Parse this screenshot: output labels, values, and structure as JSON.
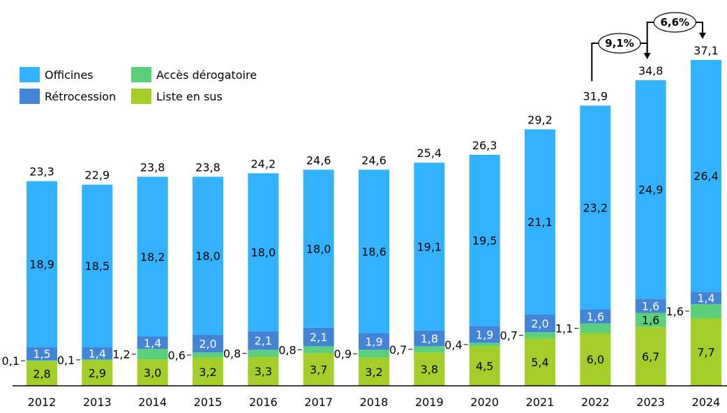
{
  "chart_data": {
    "type": "bar",
    "stacked": true,
    "title": "",
    "xlabel": "",
    "ylabel": "",
    "ylim": [
      0,
      37.1
    ],
    "grid": false,
    "legend_position": "top-left",
    "categories": [
      "2012",
      "2013",
      "2014",
      "2015",
      "2016",
      "2017",
      "2018",
      "2019",
      "2020",
      "2021",
      "2022",
      "2023",
      "2024"
    ],
    "series": [
      {
        "name": "Liste en sus",
        "color": "#A4CE2A",
        "values": [
          2.8,
          2.9,
          3.0,
          3.2,
          3.3,
          3.7,
          3.2,
          3.8,
          4.5,
          5.4,
          6.0,
          6.7,
          7.7
        ],
        "labels": [
          "2,8",
          "2,9",
          "3,0",
          "3,2",
          "3,3",
          "3,7",
          "3,2",
          "3,8",
          "4,5",
          "5,4",
          "6,0",
          "6,7",
          "7,7"
        ]
      },
      {
        "name": "Accès dérogatoire",
        "color": "#5BD07C",
        "values": [
          0.1,
          0.1,
          1.2,
          0.6,
          0.8,
          0.8,
          0.9,
          0.7,
          0.4,
          0.7,
          1.1,
          1.6,
          1.6
        ],
        "labels": [
          "0,1",
          "0,1",
          "1,2",
          "0,6",
          "0,8",
          "0,8",
          "0,9",
          "0,7",
          "0,4",
          "0,7",
          "1,1",
          "1,6",
          "1,6"
        ]
      },
      {
        "name": "Rétrocession",
        "color": "#4484D6",
        "values": [
          1.5,
          1.4,
          1.4,
          2.0,
          2.1,
          2.1,
          1.9,
          1.8,
          1.9,
          2.0,
          1.6,
          1.6,
          1.4
        ],
        "labels": [
          "1,5",
          "1,4",
          "1,4",
          "2,0",
          "2,1",
          "2,1",
          "1,9",
          "1,8",
          "1,9",
          "2,0",
          "1,6",
          "1,6",
          "1,4"
        ]
      },
      {
        "name": "Officines",
        "color": "#33B3FF",
        "values": [
          18.9,
          18.5,
          18.2,
          18.0,
          18.0,
          18.0,
          18.6,
          19.1,
          19.5,
          21.1,
          23.2,
          24.9,
          26.4
        ],
        "labels": [
          "18,9",
          "18,5",
          "18,2",
          "18,0",
          "18,0",
          "18,0",
          "18,6",
          "19,1",
          "19,5",
          "21,1",
          "23,2",
          "24,9",
          "26,4"
        ]
      }
    ],
    "totals": [
      23.3,
      22.9,
      23.8,
      23.8,
      24.2,
      24.6,
      24.6,
      25.4,
      26.3,
      29.2,
      31.9,
      34.8,
      37.1
    ],
    "total_labels": [
      "23,3",
      "22,9",
      "23,8",
      "23,8",
      "24,2",
      "24,6",
      "24,6",
      "25,4",
      "26,3",
      "29,2",
      "31,9",
      "34,8",
      "37,1"
    ],
    "annotations": [
      {
        "text": "9,1%",
        "from": "2022",
        "to": "2023"
      },
      {
        "text": "6,6%",
        "from": "2023",
        "to": "2024"
      }
    ]
  },
  "legend": [
    {
      "label": "Officines",
      "color": "#33B3FF"
    },
    {
      "label": "Accès dérogatoire",
      "color": "#5BD07C"
    },
    {
      "label": "Rétrocession",
      "color": "#4484D6"
    },
    {
      "label": "Liste en sus",
      "color": "#A4CE2A"
    }
  ]
}
